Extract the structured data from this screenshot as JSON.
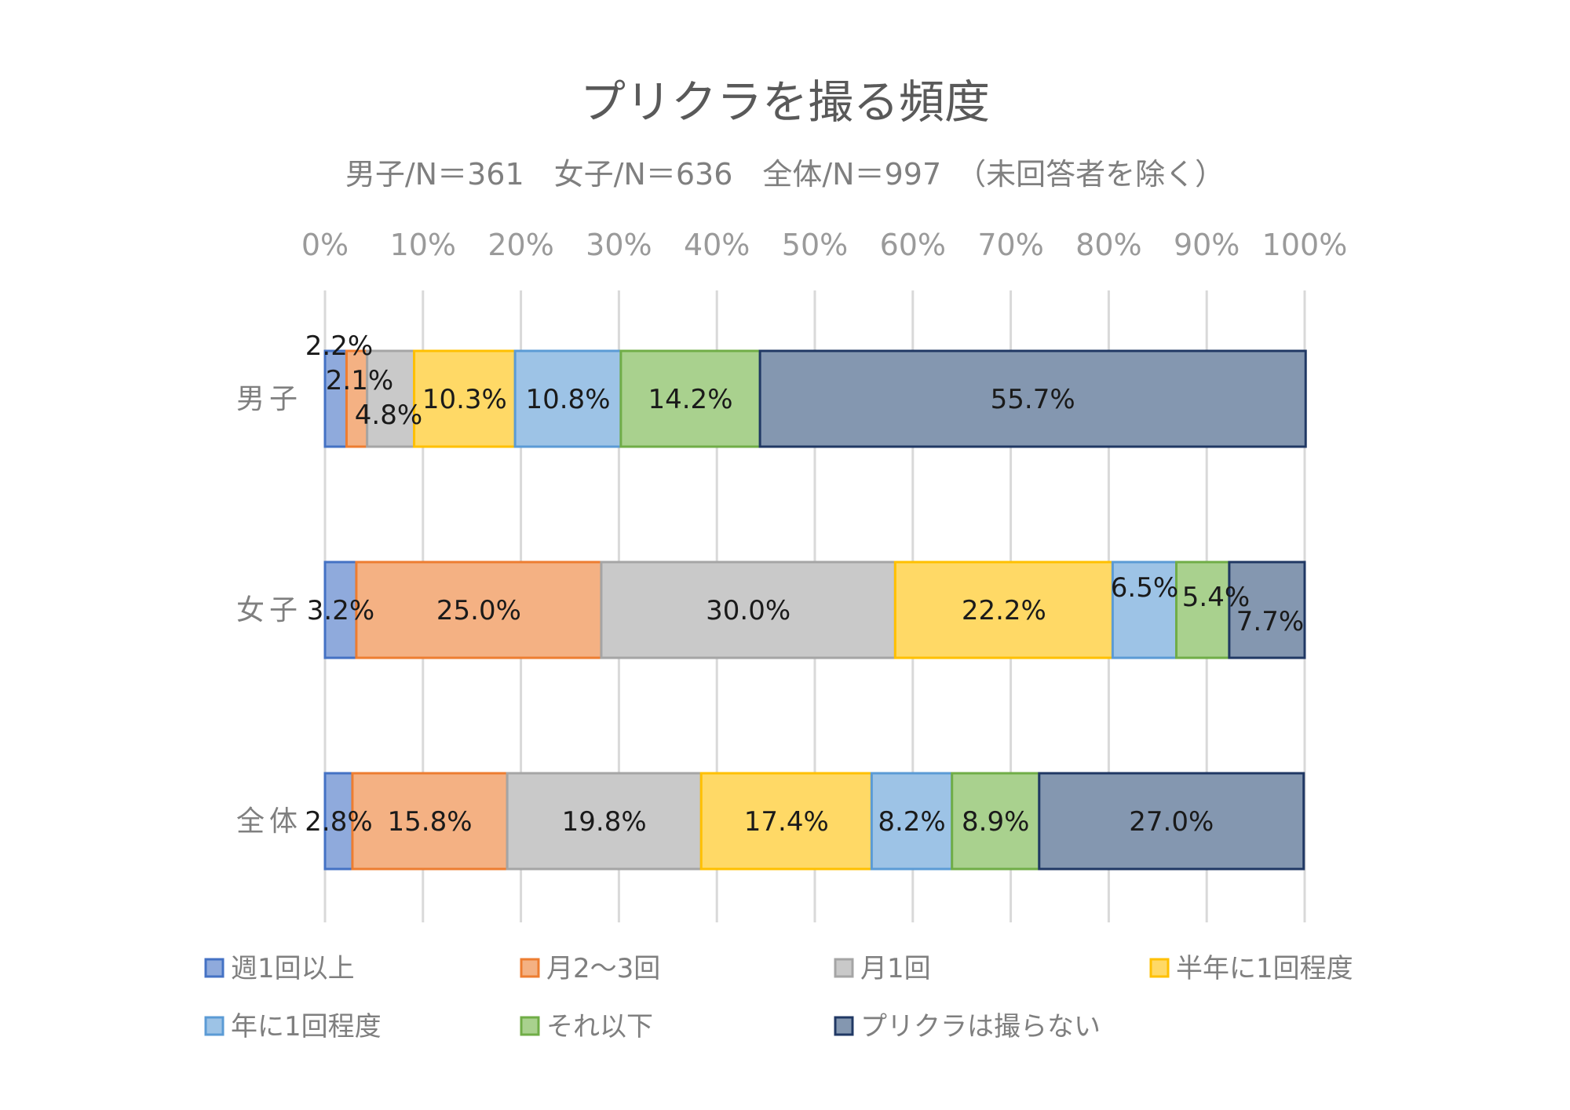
{
  "chart_data": {
    "type": "bar",
    "orientation": "horizontal",
    "stacked": "percent",
    "title": "プリクラを撮る頻度",
    "subtitle": "男子/N＝361　女子/N＝636　全体/N＝997　（未回答者を除く）",
    "xlim": [
      0,
      100
    ],
    "xticks": [
      "0%",
      "10%",
      "20%",
      "30%",
      "40%",
      "50%",
      "60%",
      "70%",
      "80%",
      "90%",
      "100%"
    ],
    "tick_position": "top",
    "grid": true,
    "legend_position": "bottom",
    "categories": [
      "男子",
      "女子",
      "全体"
    ],
    "series": [
      {
        "name": "週1回以上",
        "fill": "#8faadc",
        "stroke": "#4472c4",
        "values": [
          2.2,
          3.2,
          2.8
        ],
        "labels": [
          "2.2%",
          "3.2%",
          "2.8%"
        ]
      },
      {
        "name": "月2～3回",
        "fill": "#f4b183",
        "stroke": "#ed7d31",
        "values": [
          2.1,
          25.0,
          15.8
        ],
        "labels": [
          "2.1%",
          "25.0%",
          "15.8%"
        ]
      },
      {
        "name": "月1回",
        "fill": "#c9c9c9",
        "stroke": "#a5a5a5",
        "values": [
          4.8,
          30.0,
          19.8
        ],
        "labels": [
          "4.8%",
          "30.0%",
          "19.8%"
        ]
      },
      {
        "name": "半年に1回程度",
        "fill": "#ffd966",
        "stroke": "#ffc000",
        "values": [
          10.3,
          22.2,
          17.4
        ],
        "labels": [
          "10.3%",
          "22.2%",
          "17.4%"
        ]
      },
      {
        "name": "年に1回程度",
        "fill": "#9dc3e6",
        "stroke": "#5b9bd5",
        "values": [
          10.8,
          6.5,
          8.2
        ],
        "labels": [
          "10.8%",
          "6.5%",
          "8.2%"
        ]
      },
      {
        "name": "それ以下",
        "fill": "#a9d18e",
        "stroke": "#70ad47",
        "values": [
          14.2,
          5.4,
          8.9
        ],
        "labels": [
          "14.2%",
          "5.4%",
          "8.9%"
        ]
      },
      {
        "name": "プリクラは撮らない",
        "fill": "#8497b0",
        "stroke": "#203864",
        "values": [
          55.7,
          7.7,
          27.0
        ],
        "labels": [
          "55.7%",
          "7.7%",
          "27.0%"
        ]
      }
    ]
  }
}
